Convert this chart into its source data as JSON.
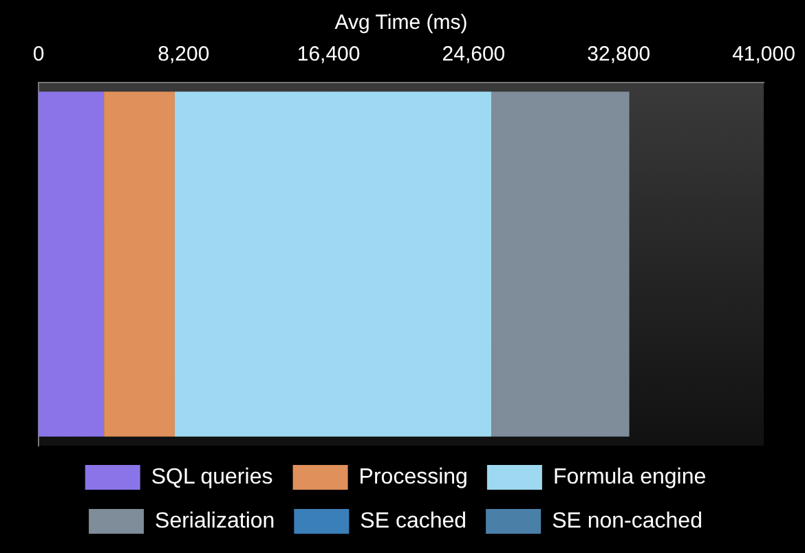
{
  "chart_data": {
    "type": "bar",
    "orientation": "horizontal",
    "stacked": true,
    "xlabel": "Avg Time (ms)",
    "categories": [
      null
    ],
    "series": [
      {
        "name": "SQL queries",
        "color": "#8b74e8",
        "values": [
          3700
        ]
      },
      {
        "name": "Processing",
        "color": "#e0905a",
        "values": [
          4000
        ]
      },
      {
        "name": "Formula engine",
        "color": "#9dd9f0",
        "values": [
          17900
        ]
      },
      {
        "name": "Serialization",
        "color": "#7f8c99",
        "values": [
          7800
        ]
      },
      {
        "name": "SE cached",
        "color": "#3b7fb8",
        "values": [
          0
        ]
      },
      {
        "name": "SE non-cached",
        "color": "#4a7fa8",
        "values": [
          0
        ]
      }
    ],
    "xlim": [
      0,
      41000
    ],
    "xticks": [
      0,
      {
        "value": 8200,
        "label": "8,200"
      },
      {
        "value": 16400,
        "label": "16,400"
      },
      {
        "value": 24600,
        "label": "24,600"
      },
      {
        "value": 32800,
        "label": "32,800"
      },
      {
        "value": 41000,
        "label": "41,000"
      }
    ],
    "legend": "bottom"
  }
}
